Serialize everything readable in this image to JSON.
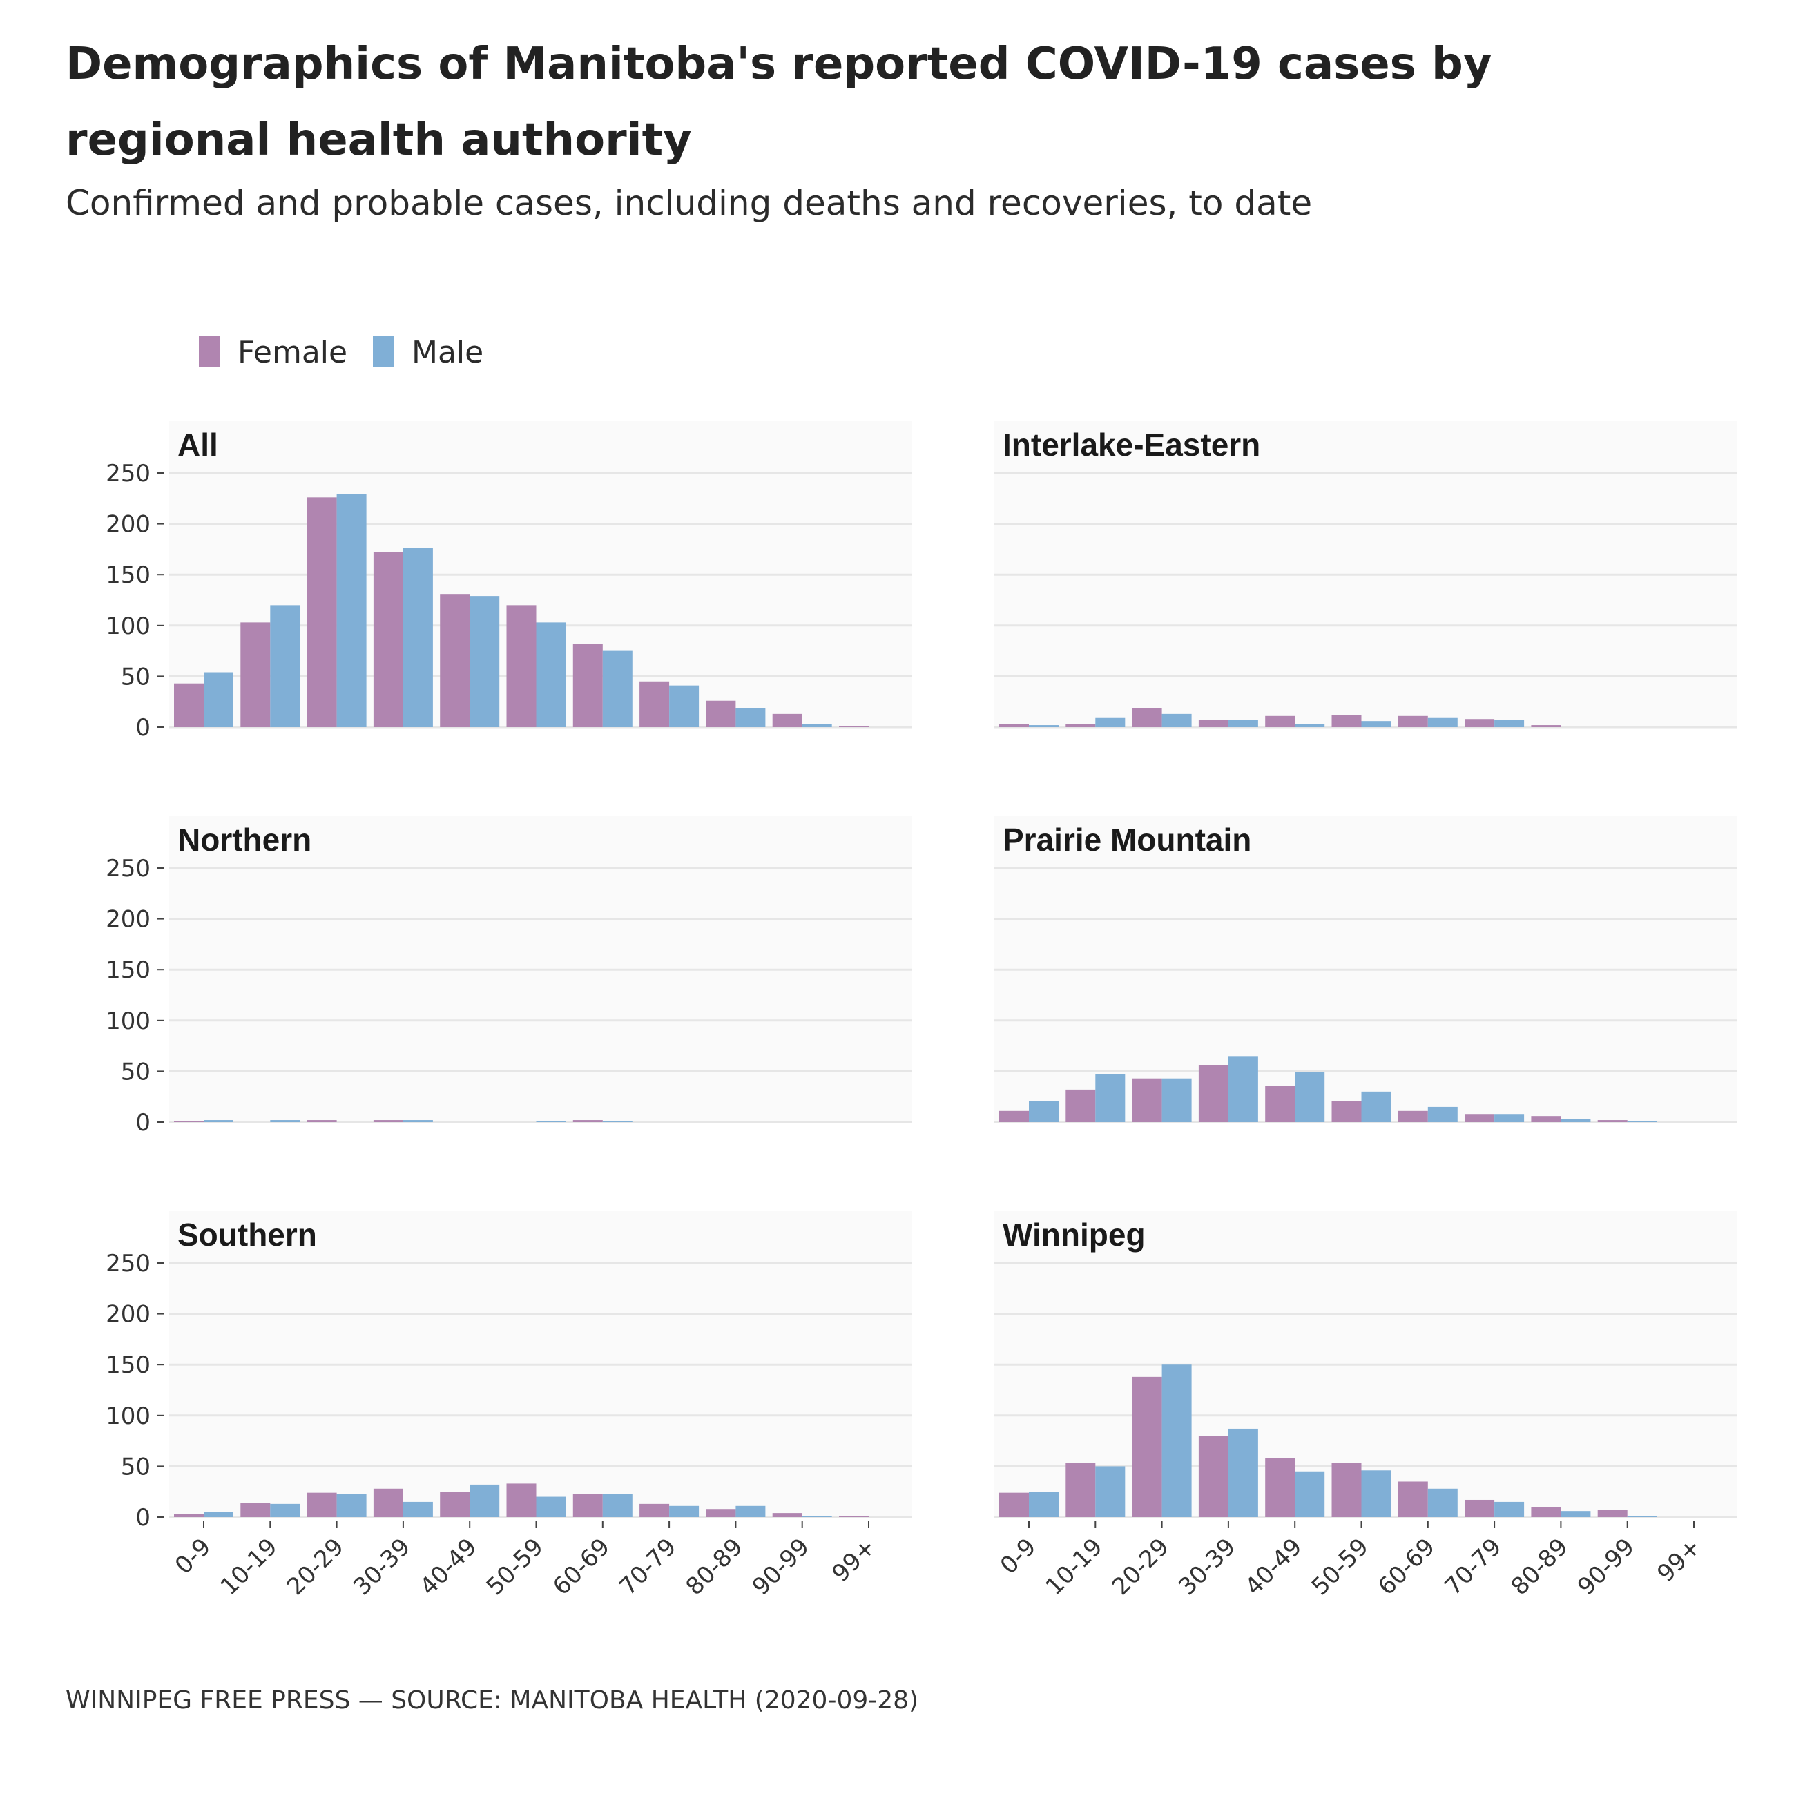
{
  "title": "Demographics of Manitoba's reported COVID-19 cases by regional health authority",
  "subtitle": "Confirmed and probable cases, including deaths and recoveries, to date",
  "footer": "WINNIPEG FREE PRESS — SOURCE: MANITOBA HEALTH (2020-09-28)",
  "colors": {
    "female": "#b085b0",
    "male": "#80afd6",
    "grid": "#e6e6e6",
    "panel_bg": "#fafafa"
  },
  "chart_data": {
    "type": "bar",
    "layout": "small multiples, 3 rows x 2 columns",
    "legend": {
      "placement": "top-left",
      "entries": [
        "Female",
        "Male"
      ]
    },
    "grid": true,
    "categories": [
      "0-9",
      "10-19",
      "20-29",
      "30-39",
      "40-49",
      "50-59",
      "60-69",
      "70-79",
      "80-89",
      "90-99",
      "99+"
    ],
    "ylim": [
      0,
      250
    ],
    "yticks": [
      0,
      50,
      100,
      150,
      200,
      250
    ],
    "panels": [
      {
        "title": "All",
        "series": [
          {
            "name": "Female",
            "values": [
              43,
              103,
              226,
              172,
              131,
              120,
              82,
              45,
              26,
              13,
              1
            ]
          },
          {
            "name": "Male",
            "values": [
              54,
              120,
              229,
              176,
              129,
              103,
              75,
              41,
              19,
              3,
              0
            ]
          }
        ]
      },
      {
        "title": "Interlake-Eastern",
        "series": [
          {
            "name": "Female",
            "values": [
              3,
              3,
              19,
              7,
              11,
              12,
              11,
              8,
              2,
              0,
              0
            ]
          },
          {
            "name": "Male",
            "values": [
              2,
              9,
              13,
              7,
              3,
              6,
              9,
              7,
              0,
              0,
              0
            ]
          }
        ]
      },
      {
        "title": "Northern",
        "series": [
          {
            "name": "Female",
            "values": [
              1,
              0,
              2,
              2,
              0,
              0,
              2,
              0,
              0,
              0,
              0
            ]
          },
          {
            "name": "Male",
            "values": [
              2,
              2,
              0,
              2,
              0,
              1,
              1,
              0,
              0,
              0,
              0
            ]
          }
        ]
      },
      {
        "title": "Prairie Mountain",
        "series": [
          {
            "name": "Female",
            "values": [
              11,
              32,
              43,
              56,
              36,
              21,
              11,
              8,
              6,
              2,
              0
            ]
          },
          {
            "name": "Male",
            "values": [
              21,
              47,
              43,
              65,
              49,
              30,
              15,
              8,
              3,
              1,
              0
            ]
          }
        ]
      },
      {
        "title": "Southern",
        "series": [
          {
            "name": "Female",
            "values": [
              3,
              14,
              24,
              28,
              25,
              33,
              23,
              13,
              8,
              4,
              1
            ]
          },
          {
            "name": "Male",
            "values": [
              5,
              13,
              23,
              15,
              32,
              20,
              23,
              11,
              11,
              1,
              0
            ]
          }
        ]
      },
      {
        "title": "Winnipeg",
        "series": [
          {
            "name": "Female",
            "values": [
              24,
              53,
              138,
              80,
              58,
              53,
              35,
              17,
              10,
              7,
              0
            ]
          },
          {
            "name": "Male",
            "values": [
              25,
              50,
              150,
              87,
              45,
              46,
              28,
              15,
              6,
              1,
              0
            ]
          }
        ]
      }
    ]
  }
}
